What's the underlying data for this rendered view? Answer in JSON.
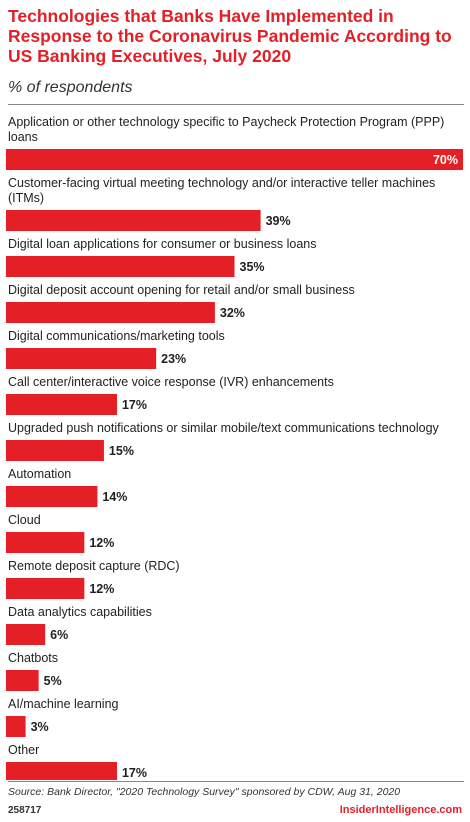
{
  "header": {
    "title": "Technologies that Banks Have Implemented in Response to the Coronavirus Pandemic According to US Banking Executives, July 2020",
    "subtitle": "% of respondents"
  },
  "footer": {
    "source": "Source: Bank Director, \"2020 Technology Survey\" sponsored by CDW, Aug 31, 2020",
    "chart_id": "258717",
    "brand": "InsiderIntelligence.com"
  },
  "colors": {
    "bar": "#e41f26",
    "accent": "#e41f26",
    "text": "#222222"
  },
  "chart_data": {
    "type": "bar",
    "orientation": "horizontal",
    "categories": [
      "Application or other technology specific to Paycheck Protection Program (PPP) loans",
      "Customer-facing virtual meeting technology and/or interactive teller machines (ITMs)",
      "Digital loan applications for consumer or business loans",
      "Digital deposit account opening for retail and/or small business",
      "Digital communications/marketing tools",
      "Call center/interactive voice response (IVR) enhancements",
      "Upgraded push notifications or similar mobile/text communications technology",
      "Automation",
      "Cloud",
      "Remote deposit capture (RDC)",
      "Data analytics capabilities",
      "Chatbots",
      "AI/machine learning",
      "Other"
    ],
    "values": [
      70,
      39,
      35,
      32,
      23,
      17,
      15,
      14,
      12,
      12,
      6,
      5,
      3,
      17
    ],
    "value_labels": [
      "70%",
      "39%",
      "35%",
      "32%",
      "23%",
      "17%",
      "15%",
      "14%",
      "12%",
      "12%",
      "6%",
      "5%",
      "3%",
      "17%"
    ],
    "xlim": [
      0,
      70
    ],
    "grid": false,
    "legend": "none"
  }
}
